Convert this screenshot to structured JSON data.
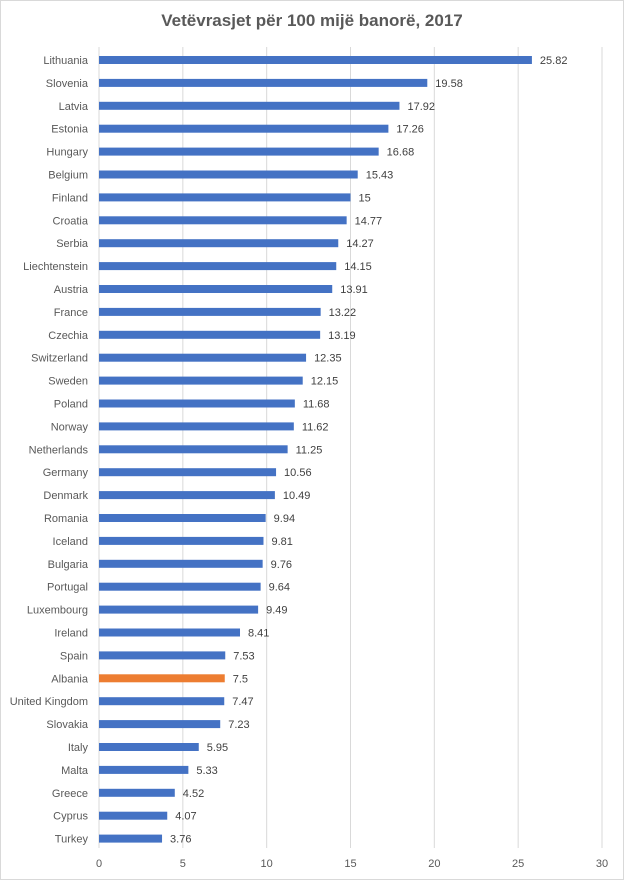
{
  "chart_data": {
    "type": "bar",
    "orientation": "horizontal",
    "title": "Vetëvrasjet për 100 mijë banorë, 2017",
    "xlabel": "",
    "ylabel": "",
    "xlim": [
      0,
      30
    ],
    "xticks": [
      0,
      5,
      10,
      15,
      20,
      25,
      30
    ],
    "grid": true,
    "legend": "none",
    "bar_color": "#4472C4",
    "highlight_color": "#ED7D31",
    "highlight_category": "Albania",
    "categories": [
      "Lithuania",
      "Slovenia",
      "Latvia",
      "Estonia",
      "Hungary",
      "Belgium",
      "Finland",
      "Croatia",
      "Serbia",
      "Liechtenstein",
      "Austria",
      "France",
      "Czechia",
      "Switzerland",
      "Sweden",
      "Poland",
      "Norway",
      "Netherlands",
      "Germany",
      "Denmark",
      "Romania",
      "Iceland",
      "Bulgaria",
      "Portugal",
      "Luxembourg",
      "Ireland",
      "Spain",
      "Albania",
      "United Kingdom",
      "Slovakia",
      "Italy",
      "Malta",
      "Greece",
      "Cyprus",
      "Turkey"
    ],
    "values": [
      25.82,
      19.58,
      17.92,
      17.26,
      16.68,
      15.43,
      15,
      14.77,
      14.27,
      14.15,
      13.91,
      13.22,
      13.19,
      12.35,
      12.15,
      11.68,
      11.62,
      11.25,
      10.56,
      10.49,
      9.94,
      9.81,
      9.76,
      9.64,
      9.49,
      8.41,
      7.53,
      7.5,
      7.47,
      7.23,
      5.95,
      5.33,
      4.52,
      4.07,
      3.76
    ]
  }
}
